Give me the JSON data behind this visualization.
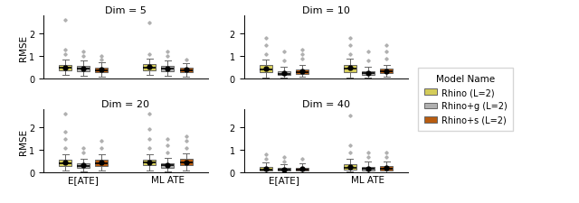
{
  "dims": [
    5,
    10,
    20,
    40
  ],
  "groups": [
    "E[ATE]",
    "ML ATE"
  ],
  "models": [
    "Rhino (L=2)",
    "Rhino+g (L=2)",
    "Rhino+s (L=2)"
  ],
  "colors": [
    "#d4cc5a",
    "#b0b0b0",
    "#b85c10"
  ],
  "ylabel": "RMSE",
  "ylim": [
    0,
    2.8
  ],
  "yticks": [
    0,
    1,
    2
  ],
  "box_data": {
    "5": {
      "E[ATE]": {
        "Rhino (L=2)": {
          "med": 0.47,
          "q1": 0.35,
          "q3": 0.6,
          "whislo": 0.15,
          "whishi": 0.85,
          "mean": 0.5,
          "fliers": [
            1.1,
            1.3,
            2.6
          ]
        },
        "Rhino+g (L=2)": {
          "med": 0.44,
          "q1": 0.32,
          "q3": 0.57,
          "whislo": 0.12,
          "whishi": 0.82,
          "mean": 0.46,
          "fliers": [
            1.0,
            1.2
          ]
        },
        "Rhino+s (L=2)": {
          "med": 0.38,
          "q1": 0.28,
          "q3": 0.5,
          "whislo": 0.1,
          "whishi": 0.72,
          "mean": 0.4,
          "fliers": [
            0.85,
            1.0
          ]
        }
      },
      "ML ATE": {
        "Rhino (L=2)": {
          "med": 0.5,
          "q1": 0.38,
          "q3": 0.63,
          "whislo": 0.16,
          "whishi": 0.88,
          "mean": 0.52,
          "fliers": [
            1.1,
            2.5
          ]
        },
        "Rhino+g (L=2)": {
          "med": 0.44,
          "q1": 0.33,
          "q3": 0.56,
          "whislo": 0.12,
          "whishi": 0.8,
          "mean": 0.46,
          "fliers": [
            1.0,
            1.2
          ]
        },
        "Rhino+s (L=2)": {
          "med": 0.37,
          "q1": 0.27,
          "q3": 0.49,
          "whislo": 0.1,
          "whishi": 0.7,
          "mean": 0.39,
          "fliers": [
            0.85
          ]
        }
      }
    },
    "10": {
      "E[ATE]": {
        "Rhino (L=2)": {
          "med": 0.42,
          "q1": 0.28,
          "q3": 0.6,
          "whislo": 0.05,
          "whishi": 0.85,
          "mean": 0.45,
          "fliers": [
            1.1,
            1.5,
            1.8
          ]
        },
        "Rhino+g (L=2)": {
          "med": 0.22,
          "q1": 0.15,
          "q3": 0.32,
          "whislo": 0.04,
          "whishi": 0.52,
          "mean": 0.24,
          "fliers": [
            0.8,
            1.2
          ]
        },
        "Rhino+s (L=2)": {
          "med": 0.3,
          "q1": 0.22,
          "q3": 0.42,
          "whislo": 0.08,
          "whishi": 0.6,
          "mean": 0.32,
          "fliers": [
            0.9,
            1.1,
            1.3
          ]
        }
      },
      "ML ATE": {
        "Rhino (L=2)": {
          "med": 0.44,
          "q1": 0.3,
          "q3": 0.62,
          "whislo": 0.06,
          "whishi": 0.88,
          "mean": 0.47,
          "fliers": [
            1.1,
            1.5,
            1.8
          ]
        },
        "Rhino+g (L=2)": {
          "med": 0.23,
          "q1": 0.16,
          "q3": 0.33,
          "whislo": 0.05,
          "whishi": 0.54,
          "mean": 0.25,
          "fliers": [
            0.8,
            1.2
          ]
        },
        "Rhino+s (L=2)": {
          "med": 0.31,
          "q1": 0.23,
          "q3": 0.43,
          "whislo": 0.09,
          "whishi": 0.62,
          "mean": 0.33,
          "fliers": [
            0.9,
            1.2,
            1.5
          ]
        }
      }
    },
    "20": {
      "E[ATE]": {
        "Rhino (L=2)": {
          "med": 0.42,
          "q1": 0.3,
          "q3": 0.56,
          "whislo": 0.1,
          "whishi": 0.8,
          "mean": 0.44,
          "fliers": [
            1.1,
            1.5,
            1.8,
            2.6
          ]
        },
        "Rhino+g (L=2)": {
          "med": 0.3,
          "q1": 0.21,
          "q3": 0.4,
          "whislo": 0.06,
          "whishi": 0.62,
          "mean": 0.32,
          "fliers": [
            0.9,
            1.1
          ]
        },
        "Rhino+s (L=2)": {
          "med": 0.42,
          "q1": 0.3,
          "q3": 0.58,
          "whislo": 0.08,
          "whishi": 0.82,
          "mean": 0.44,
          "fliers": [
            1.1,
            1.4
          ]
        }
      },
      "ML ATE": {
        "Rhino (L=2)": {
          "med": 0.43,
          "q1": 0.31,
          "q3": 0.57,
          "whislo": 0.1,
          "whishi": 0.82,
          "mean": 0.45,
          "fliers": [
            1.1,
            1.5,
            1.9,
            2.6
          ]
        },
        "Rhino+g (L=2)": {
          "med": 0.31,
          "q1": 0.22,
          "q3": 0.41,
          "whislo": 0.06,
          "whishi": 0.63,
          "mean": 0.33,
          "fliers": [
            0.9,
            1.2,
            1.5
          ]
        },
        "Rhino+s (L=2)": {
          "med": 0.43,
          "q1": 0.31,
          "q3": 0.59,
          "whislo": 0.09,
          "whishi": 0.83,
          "mean": 0.45,
          "fliers": [
            1.1,
            1.4,
            1.6
          ]
        }
      }
    },
    "40": {
      "E[ATE]": {
        "Rhino (L=2)": {
          "med": 0.14,
          "q1": 0.08,
          "q3": 0.24,
          "whislo": 0.02,
          "whishi": 0.44,
          "mean": 0.16,
          "fliers": [
            0.6,
            0.8
          ]
        },
        "Rhino+g (L=2)": {
          "med": 0.12,
          "q1": 0.07,
          "q3": 0.2,
          "whislo": 0.02,
          "whishi": 0.38,
          "mean": 0.14,
          "fliers": [
            0.5,
            0.7
          ]
        },
        "Rhino+s (L=2)": {
          "med": 0.14,
          "q1": 0.08,
          "q3": 0.22,
          "whislo": 0.02,
          "whishi": 0.4,
          "mean": 0.16,
          "fliers": [
            0.6
          ]
        }
      },
      "ML ATE": {
        "Rhino (L=2)": {
          "med": 0.22,
          "q1": 0.12,
          "q3": 0.38,
          "whislo": 0.03,
          "whishi": 0.62,
          "mean": 0.25,
          "fliers": [
            0.9,
            1.2,
            2.5
          ]
        },
        "Rhino+g (L=2)": {
          "med": 0.15,
          "q1": 0.09,
          "q3": 0.26,
          "whislo": 0.02,
          "whishi": 0.48,
          "mean": 0.17,
          "fliers": [
            0.7,
            0.9
          ]
        },
        "Rhino+s (L=2)": {
          "med": 0.17,
          "q1": 0.1,
          "q3": 0.28,
          "whislo": 0.02,
          "whishi": 0.5,
          "mean": 0.19,
          "fliers": [
            0.7,
            0.9
          ]
        }
      }
    }
  }
}
